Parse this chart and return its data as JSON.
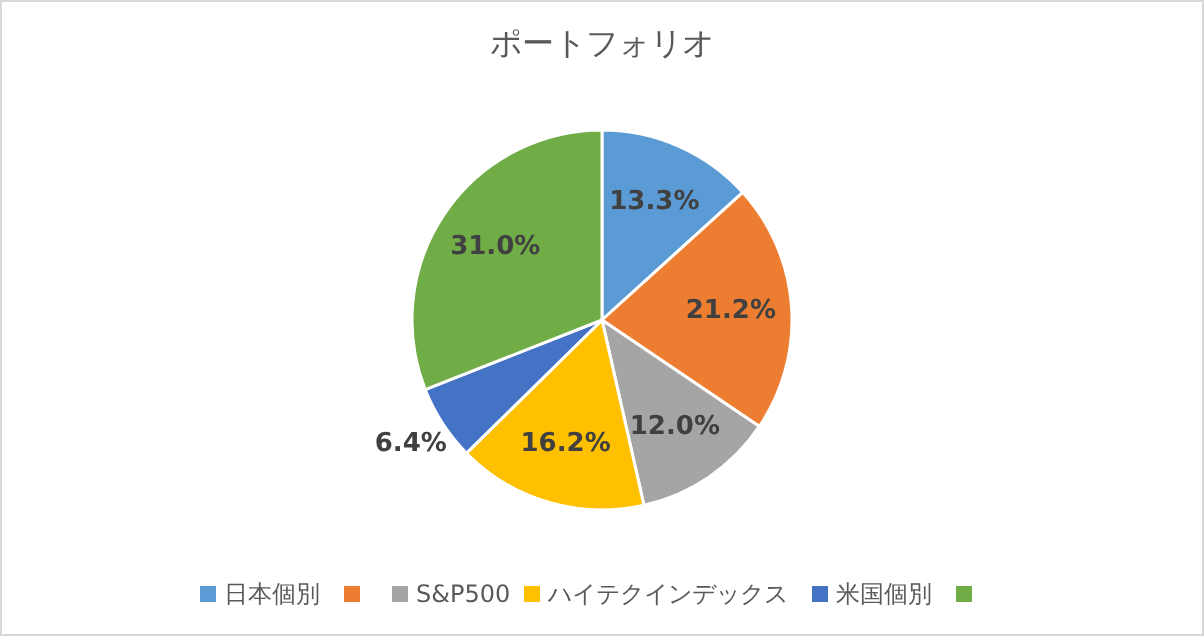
{
  "chart_data": {
    "type": "pie",
    "title": "ポートフォリオ",
    "categories": [
      "日本個別",
      null,
      "S&P500",
      "ハイテクインデックス",
      "米国個別",
      null
    ],
    "values": [
      13.3,
      21.2,
      12.0,
      16.2,
      6.4,
      31.0
    ],
    "value_labels": [
      "13.3%",
      "21.2%",
      "12.0%",
      "16.2%",
      "6.4%",
      "31.0%"
    ],
    "colors": [
      "#5b9bd5",
      "#ed7d31",
      "#a5a5a5",
      "#ffc000",
      "#4472c4",
      "#70ad47"
    ],
    "legend": "bottom"
  }
}
